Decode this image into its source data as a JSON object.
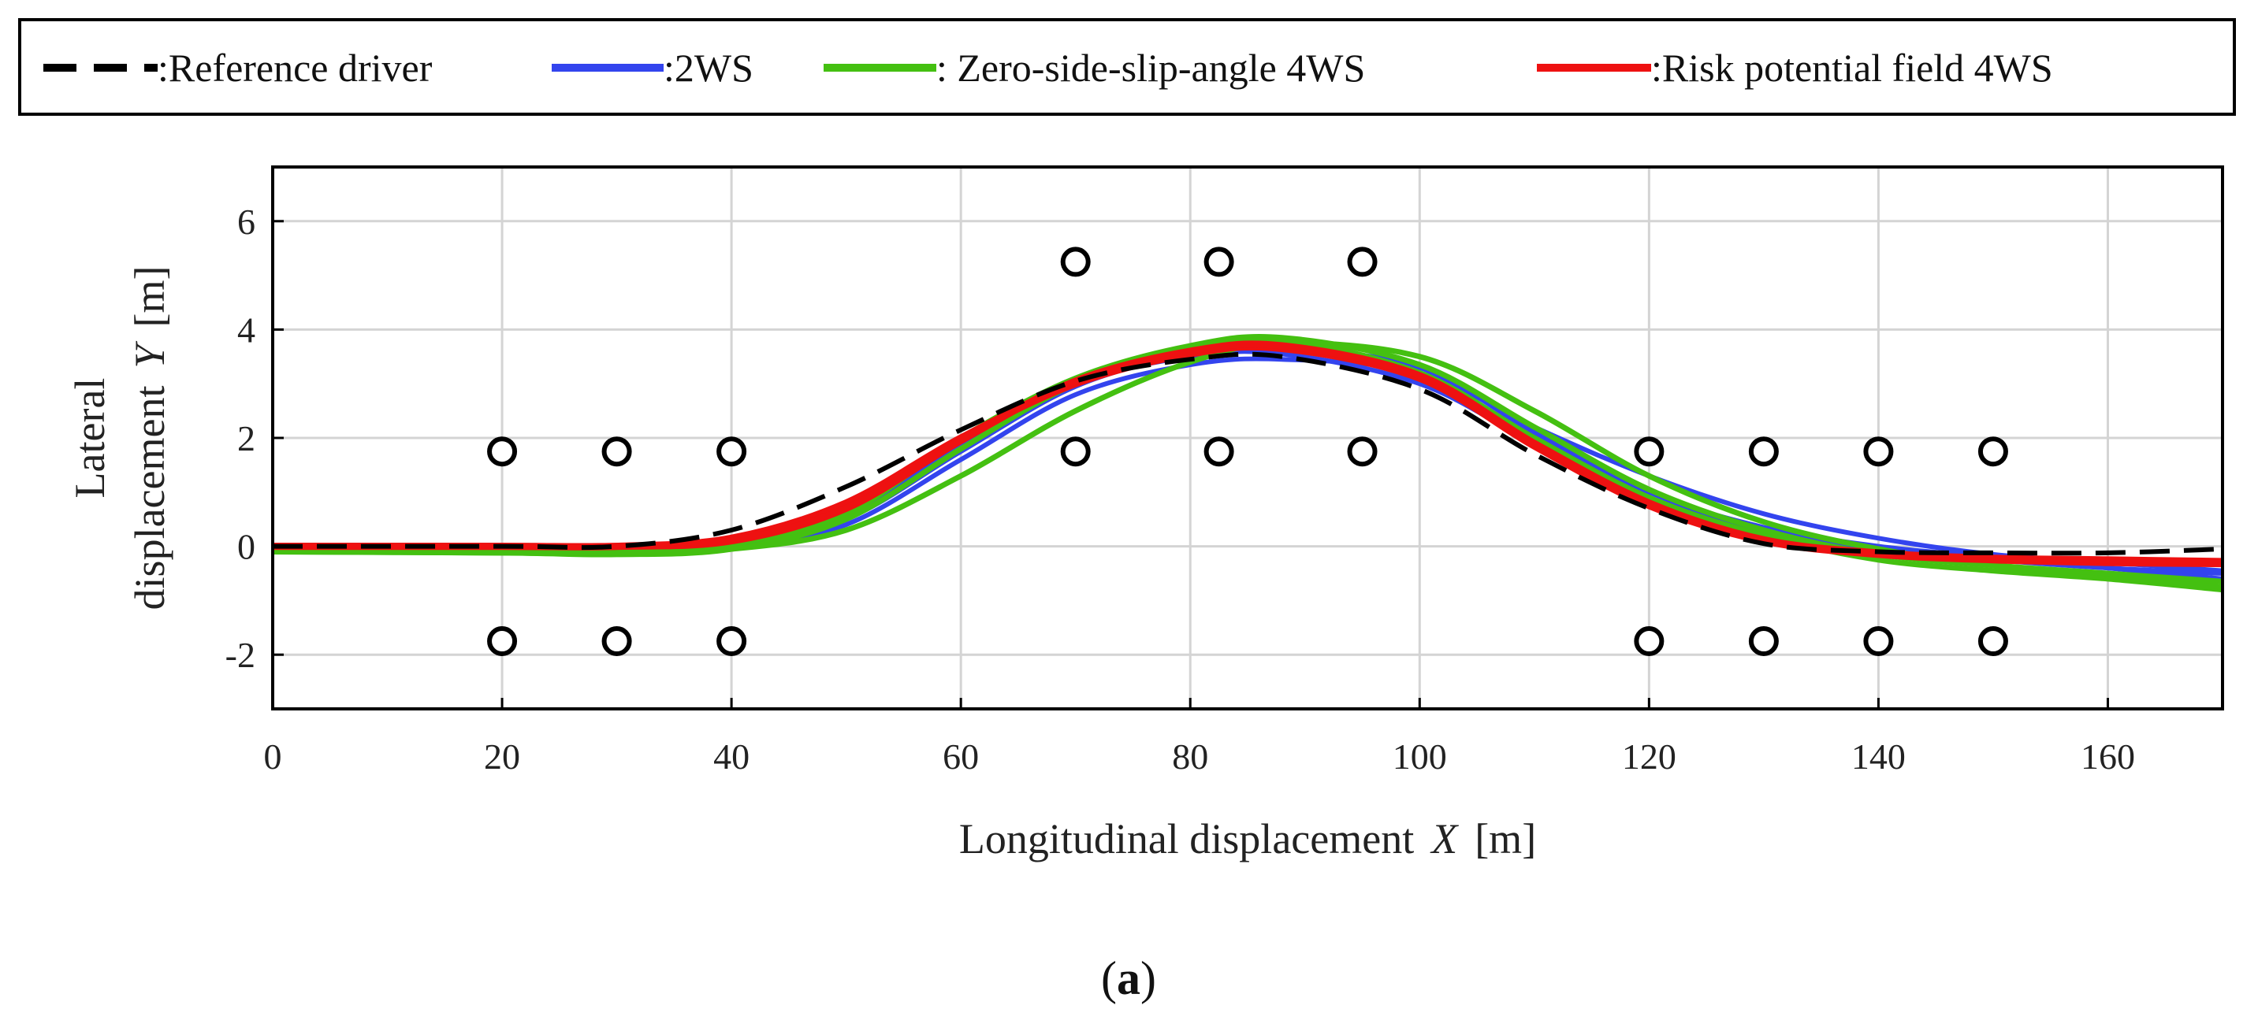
{
  "chart_data": {
    "type": "line",
    "xlabel": "Longitudinal displacement",
    "xlabel_var": "X",
    "xlabel_unit": "[m]",
    "ylabel_line1": "Lateral",
    "ylabel_line2": "displacement",
    "ylabel_var": "Y",
    "ylabel_unit": "[m]",
    "xlim": [
      0,
      170
    ],
    "ylim": [
      -3,
      7
    ],
    "xticks": [
      0,
      20,
      40,
      60,
      80,
      100,
      120,
      140,
      160
    ],
    "yticks": [
      -2,
      0,
      2,
      4,
      6
    ],
    "grid": true,
    "legend": [
      {
        "label": ":Reference driver",
        "color": "#000000",
        "style": "dashed"
      },
      {
        "label": ":2WS",
        "color": "#3344ee",
        "style": "solid"
      },
      {
        "label": ": Zero-side-slip-angle 4WS",
        "color": "#44c011",
        "style": "solid"
      },
      {
        "label": ":Risk potential field 4WS",
        "color": "#ee1111",
        "style": "solid"
      }
    ],
    "legend_position": "top",
    "series": [
      {
        "name": "2WS run 1",
        "color": "#3344ee",
        "width": 6,
        "x": [
          0,
          20,
          30,
          40,
          50,
          60,
          70,
          80,
          88,
          100,
          110,
          120,
          130,
          140,
          150,
          160,
          170
        ],
        "y": [
          -0.08,
          -0.1,
          -0.1,
          0.05,
          0.6,
          1.9,
          3.0,
          3.5,
          3.55,
          3.0,
          1.9,
          0.9,
          0.3,
          -0.05,
          -0.25,
          -0.4,
          -0.5
        ]
      },
      {
        "name": "2WS run 2",
        "color": "#3344ee",
        "width": 6,
        "x": [
          0,
          20,
          30,
          40,
          50,
          60,
          70,
          80,
          88,
          100,
          110,
          120,
          130,
          140,
          150,
          160,
          170
        ],
        "y": [
          -0.08,
          -0.1,
          -0.12,
          -0.05,
          0.4,
          1.6,
          2.8,
          3.35,
          3.45,
          3.2,
          2.2,
          1.3,
          0.6,
          0.15,
          -0.15,
          -0.3,
          -0.45
        ]
      },
      {
        "name": "2WS run 3",
        "color": "#3344ee",
        "width": 6,
        "x": [
          0,
          20,
          30,
          40,
          50,
          60,
          70,
          80,
          88,
          100,
          110,
          120,
          130,
          140,
          150,
          160,
          170
        ],
        "y": [
          -0.08,
          -0.1,
          -0.1,
          0.0,
          0.5,
          1.75,
          2.95,
          3.55,
          3.65,
          3.3,
          2.1,
          1.0,
          0.35,
          0.0,
          -0.2,
          -0.4,
          -0.6
        ]
      },
      {
        "name": "Zero-side-slip-angle 4WS run 1",
        "color": "#44c011",
        "width": 7,
        "x": [
          0,
          20,
          30,
          40,
          50,
          60,
          70,
          80,
          88,
          100,
          110,
          120,
          130,
          140,
          150,
          160,
          170
        ],
        "y": [
          -0.1,
          -0.12,
          -0.15,
          -0.05,
          0.5,
          1.8,
          3.0,
          3.65,
          3.8,
          3.2,
          2.0,
          0.9,
          0.2,
          -0.25,
          -0.45,
          -0.6,
          -0.8
        ]
      },
      {
        "name": "Zero-side-slip-angle 4WS run 2",
        "color": "#44c011",
        "width": 7,
        "x": [
          0,
          20,
          30,
          40,
          50,
          60,
          70,
          80,
          88,
          100,
          110,
          120,
          130,
          140,
          150,
          160,
          170
        ],
        "y": [
          -0.1,
          -0.12,
          -0.12,
          -0.05,
          0.3,
          1.3,
          2.5,
          3.4,
          3.75,
          3.5,
          2.5,
          1.3,
          0.45,
          -0.05,
          -0.35,
          -0.55,
          -0.75
        ]
      },
      {
        "name": "Zero-side-slip-angle 4WS run 3",
        "color": "#44c011",
        "width": 7,
        "x": [
          0,
          20,
          30,
          40,
          50,
          60,
          70,
          80,
          88,
          100,
          110,
          120,
          130,
          140,
          150,
          160,
          170
        ],
        "y": [
          -0.1,
          -0.1,
          -0.1,
          0.05,
          0.6,
          2.0,
          3.1,
          3.7,
          3.85,
          3.35,
          2.2,
          1.05,
          0.3,
          -0.15,
          -0.35,
          -0.5,
          -0.65
        ]
      },
      {
        "name": "Risk potential field 4WS run 1",
        "color": "#ee1111",
        "width": 9,
        "x": [
          0,
          20,
          30,
          40,
          50,
          60,
          70,
          80,
          88,
          100,
          110,
          120,
          130,
          140,
          150,
          160,
          170
        ],
        "y": [
          0.0,
          0.0,
          0.0,
          0.15,
          0.8,
          2.0,
          3.0,
          3.55,
          3.65,
          3.1,
          1.85,
          0.75,
          0.1,
          -0.15,
          -0.25,
          -0.3,
          -0.32
        ]
      },
      {
        "name": "Risk potential field 4WS run 2",
        "color": "#ee1111",
        "width": 9,
        "x": [
          0,
          20,
          30,
          40,
          50,
          60,
          70,
          80,
          88,
          100,
          110,
          120,
          130,
          140,
          150,
          160,
          170
        ],
        "y": [
          0.0,
          0.0,
          0.0,
          0.1,
          0.7,
          1.95,
          3.05,
          3.6,
          3.7,
          3.15,
          1.9,
          0.8,
          0.12,
          -0.12,
          -0.22,
          -0.25,
          -0.28
        ]
      },
      {
        "name": "Reference driver",
        "color": "#000000",
        "width": 6,
        "dashed": true,
        "x": [
          0,
          20,
          30,
          40,
          50,
          60,
          70,
          80,
          88,
          100,
          110,
          120,
          130,
          140,
          150,
          160,
          170
        ],
        "y": [
          0.0,
          0.0,
          0.0,
          0.3,
          1.1,
          2.15,
          3.05,
          3.45,
          3.5,
          2.9,
          1.7,
          0.7,
          0.05,
          -0.1,
          -0.12,
          -0.12,
          -0.05
        ]
      }
    ],
    "markers": {
      "shape": "circle",
      "points": [
        [
          20,
          1.75
        ],
        [
          30,
          1.75
        ],
        [
          40,
          1.75
        ],
        [
          20,
          -1.75
        ],
        [
          30,
          -1.75
        ],
        [
          40,
          -1.75
        ],
        [
          70,
          5.25
        ],
        [
          82.5,
          5.25
        ],
        [
          95,
          5.25
        ],
        [
          70,
          1.75
        ],
        [
          82.5,
          1.75
        ],
        [
          95,
          1.75
        ],
        [
          120,
          1.75
        ],
        [
          130,
          1.75
        ],
        [
          140,
          1.75
        ],
        [
          150,
          1.75
        ],
        [
          120,
          -1.75
        ],
        [
          130,
          -1.75
        ],
        [
          140,
          -1.75
        ],
        [
          150,
          -1.75
        ]
      ]
    }
  },
  "caption": {
    "open": "(",
    "label": "a",
    "close": ")"
  }
}
